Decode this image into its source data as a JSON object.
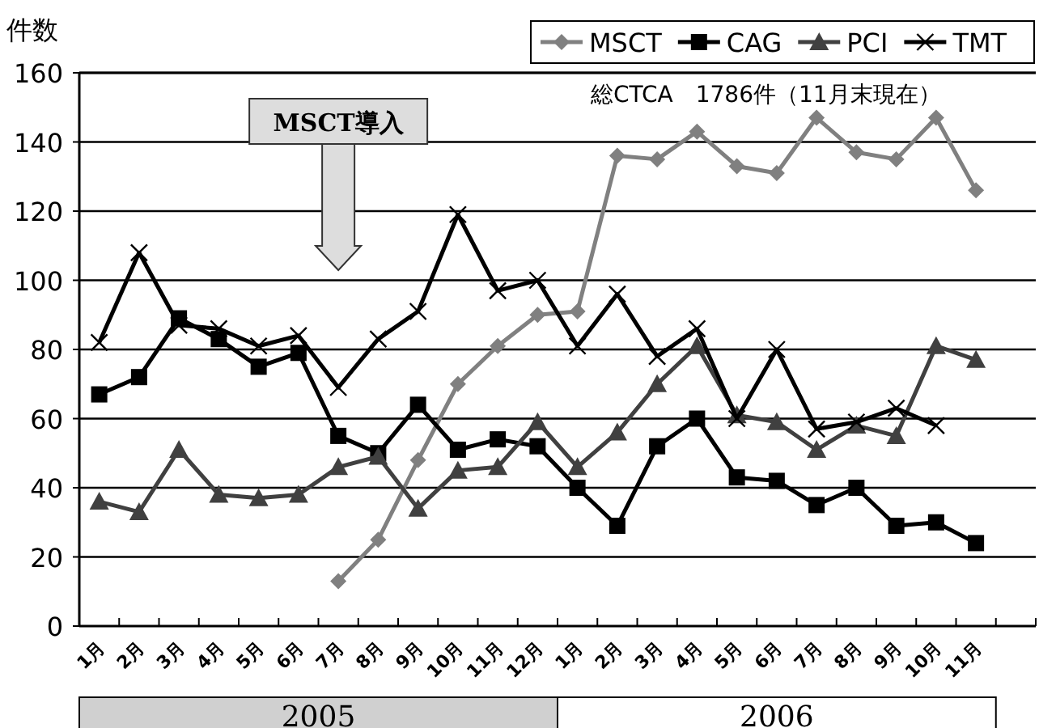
{
  "chart_data": {
    "type": "line",
    "ylabel": "件数",
    "categories": [
      "1月",
      "2月",
      "3月",
      "4月",
      "5月",
      "6月",
      "7月",
      "8月",
      "9月",
      "10月",
      "11月",
      "12月",
      "1月",
      "2月",
      "3月",
      "4月",
      "5月",
      "6月",
      "7月",
      "8月",
      "9月",
      "10月",
      "11月",
      null
    ],
    "series": [
      {
        "name": "MSCT",
        "color": "#808080",
        "marker": "diamond",
        "values": [
          null,
          null,
          null,
          null,
          null,
          null,
          13,
          25,
          48,
          70,
          81,
          90,
          91,
          136,
          135,
          143,
          133,
          131,
          147,
          137,
          135,
          147,
          126,
          null
        ]
      },
      {
        "name": "CAG",
        "color": "#000000",
        "marker": "square",
        "values": [
          67,
          72,
          89,
          83,
          75,
          79,
          55,
          50,
          64,
          51,
          54,
          52,
          40,
          29,
          52,
          60,
          43,
          42,
          35,
          40,
          29,
          30,
          24,
          null
        ]
      },
      {
        "name": "PCI",
        "color": "#404040",
        "marker": "triangle",
        "values": [
          36,
          33,
          51,
          38,
          37,
          38,
          46,
          49,
          34,
          45,
          46,
          59,
          46,
          56,
          70,
          81,
          61,
          59,
          51,
          58,
          55,
          81,
          77,
          null
        ]
      },
      {
        "name": "TMT",
        "color": "#000000",
        "marker": "cross",
        "values": [
          82,
          108,
          87,
          86,
          81,
          84,
          69,
          83,
          91,
          119,
          97,
          100,
          81,
          96,
          78,
          86,
          60,
          80,
          57,
          59,
          63,
          58,
          null,
          null
        ]
      }
    ],
    "ylim": [
      0,
      160
    ],
    "yticks": [
      0,
      20,
      40,
      60,
      80,
      100,
      120,
      140,
      160
    ],
    "grid": "y",
    "legend": "top right",
    "line_style": "solid",
    "annotations": [
      "MSCT導入",
      "総CTCA　1786件（11月末現在）",
      "2005",
      "2006"
    ]
  }
}
